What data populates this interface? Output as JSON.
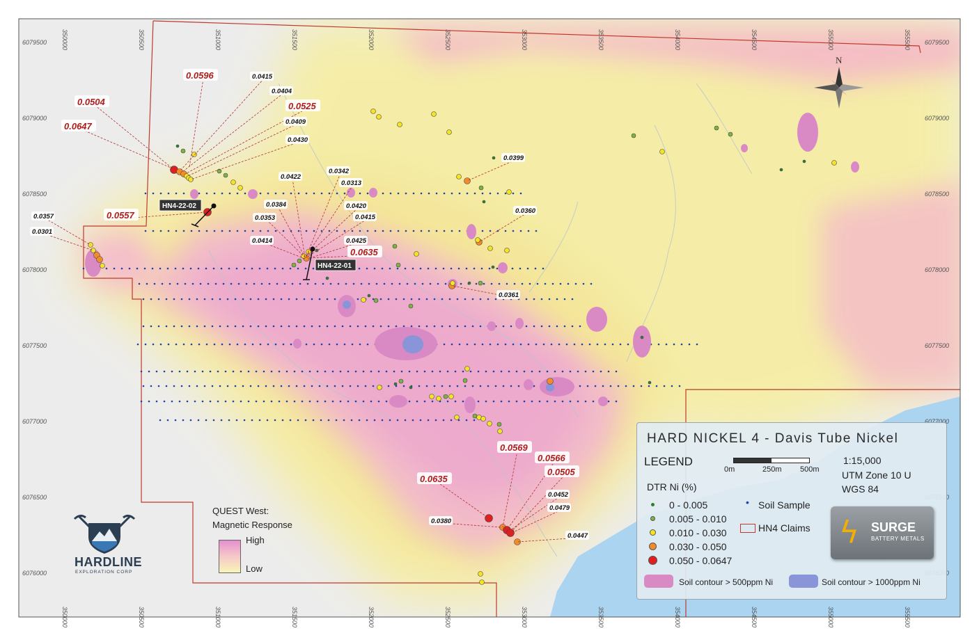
{
  "title": "HARD NICKEL 4 - Davis Tube Nickel",
  "legend": {
    "heading": "LEGEND",
    "dtr_heading": "DTR Ni (%)",
    "classes": [
      {
        "label": "0 - 0.005",
        "color": "#2e7d32"
      },
      {
        "label": "0.005 - 0.010",
        "color": "#7cb342"
      },
      {
        "label": "0.010 - 0.030",
        "color": "#f4e424"
      },
      {
        "label": "0.030 - 0.050",
        "color": "#f28c28"
      },
      {
        "label": "0.050 - 0.0647",
        "color": "#e02020"
      }
    ],
    "soil_sample": "Soil Sample",
    "claims": "HN4 Claims",
    "soil_500": "Soil contour > 500ppm Ni",
    "soil_1000": "Soil contour > 1000ppm Ni",
    "scale_text": "1:15,000",
    "zone": "UTM Zone 10 U",
    "datum": "WGS 84",
    "scale_labels": [
      "0m",
      "250m",
      "500m"
    ],
    "logo_name": "SURGE",
    "logo_sub": "BATTERY METALS"
  },
  "quest": {
    "title_1": "QUEST West:",
    "title_2": "Magnetic Response",
    "high": "High",
    "low": "Low"
  },
  "company": {
    "name": "HARDLINE",
    "sub": "EXPLORATION CORP"
  },
  "north": "N",
  "eastings": [
    "350000",
    "350500",
    "351000",
    "351500",
    "352000",
    "352500",
    "353000",
    "353500",
    "354000",
    "354500",
    "355000",
    "355500"
  ],
  "northings": [
    "6079500",
    "6079000",
    "6078500",
    "6078000",
    "6077500",
    "6077000",
    "6076500",
    "6076000"
  ],
  "drillholes": [
    {
      "id": "HN4-22-02"
    },
    {
      "id": "HN4-22-01"
    }
  ],
  "callouts": [
    {
      "text": "0.0596",
      "size": "big"
    },
    {
      "text": "0.0504",
      "size": "big"
    },
    {
      "text": "0.0647",
      "size": "big"
    },
    {
      "text": "0.0525",
      "size": "big"
    },
    {
      "text": "0.0557",
      "size": "big"
    },
    {
      "text": "0.0635",
      "size": "big"
    },
    {
      "text": "0.0569",
      "size": "big"
    },
    {
      "text": "0.0566",
      "size": "big"
    },
    {
      "text": "0.0505",
      "size": "big"
    },
    {
      "text": "0.0635",
      "size": "big"
    },
    {
      "text": "0.0415",
      "size": "small"
    },
    {
      "text": "0.0404",
      "size": "small"
    },
    {
      "text": "0.0409",
      "size": "small"
    },
    {
      "text": "0.0430",
      "size": "small"
    },
    {
      "text": "0.0357",
      "size": "small"
    },
    {
      "text": "0.0301",
      "size": "small"
    },
    {
      "text": "0.0342",
      "size": "small"
    },
    {
      "text": "0.0422",
      "size": "small"
    },
    {
      "text": "0.0313",
      "size": "small"
    },
    {
      "text": "0.0384",
      "size": "small"
    },
    {
      "text": "0.0420",
      "size": "small"
    },
    {
      "text": "0.0353",
      "size": "small"
    },
    {
      "text": "0.0415",
      "size": "small"
    },
    {
      "text": "0.0414",
      "size": "small"
    },
    {
      "text": "0.0425",
      "size": "small"
    },
    {
      "text": "0.0399",
      "size": "small"
    },
    {
      "text": "0.0360",
      "size": "small"
    },
    {
      "text": "0.0361",
      "size": "small"
    },
    {
      "text": "0.0452",
      "size": "small"
    },
    {
      "text": "0.0479",
      "size": "small"
    },
    {
      "text": "0.0380",
      "size": "small"
    },
    {
      "text": "0.0447",
      "size": "small"
    }
  ]
}
